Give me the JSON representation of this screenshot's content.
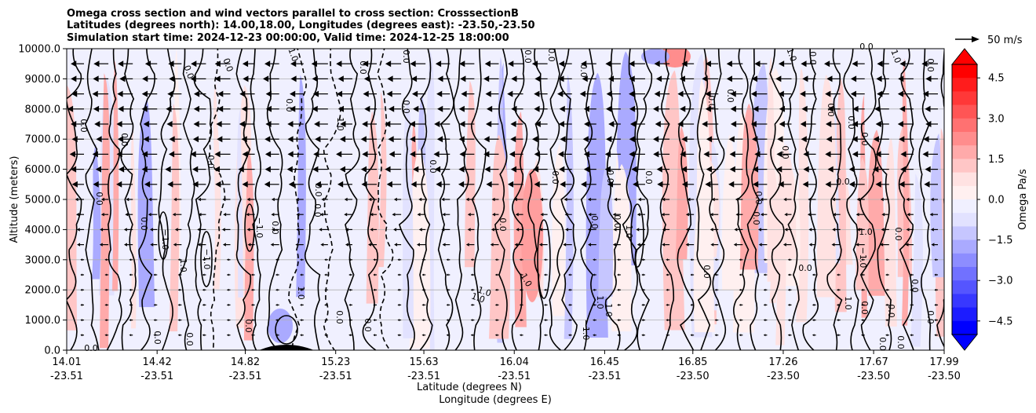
{
  "chart_data": {
    "type": "contour",
    "title_lines": [
      "Omega cross section and wind vectors parallel to cross section: CrosssectionB",
      "Latitudes (degrees north): 14.00,18.00, Longitudes (degrees east): -23.50,-23.50",
      "Simulation start time: 2024-12-23 00:00:00, Valid time: 2024-12-25 18:00:00"
    ],
    "xlabel_lat": "Latitude (degrees N)",
    "xlabel_lon": "Longitude (degrees E)",
    "ylabel": "Altitude (meters)",
    "ylim": [
      0,
      10000
    ],
    "yticks": [
      "0.0",
      "1000.0",
      "2000.0",
      "3000.0",
      "4000.0",
      "5000.0",
      "6000.0",
      "7000.0",
      "8000.0",
      "9000.0",
      "10000.0"
    ],
    "xticks": [
      {
        "lat": "14.01",
        "lon": "-23.51"
      },
      {
        "lat": "14.42",
        "lon": "-23.51"
      },
      {
        "lat": "14.82",
        "lon": "-23.51"
      },
      {
        "lat": "15.23",
        "lon": "-23.51"
      },
      {
        "lat": "15.63",
        "lon": "-23.51"
      },
      {
        "lat": "16.04",
        "lon": "-23.51"
      },
      {
        "lat": "16.45",
        "lon": "-23.51"
      },
      {
        "lat": "16.85",
        "lon": "-23.50"
      },
      {
        "lat": "17.26",
        "lon": "-23.50"
      },
      {
        "lat": "17.67",
        "lon": "-23.50"
      },
      {
        "lat": "17.99",
        "lon": "-23.50"
      }
    ],
    "grid": "horizontal",
    "colorbar": {
      "label": "Omega Pa/s",
      "ticks": [
        "4.5",
        "3.0",
        "1.5",
        "0.0",
        "−1.5",
        "−3.0",
        "−4.5"
      ],
      "range": [
        -5,
        5
      ],
      "extend": "both",
      "colors_high_to_low": [
        "#ff0000",
        "#ff1c1c",
        "#ff3838",
        "#ff5555",
        "#ff7171",
        "#ff8d8d",
        "#ffaaaa",
        "#ffc6c6",
        "#ffe2e2",
        "#fff0f0",
        "#f0f0ff",
        "#e2e2ff",
        "#c6c6ff",
        "#aaaaff",
        "#8d8dff",
        "#7171ff",
        "#5555ff",
        "#3838ff",
        "#1c1cff",
        "#0000ff"
      ]
    },
    "quiver_key": {
      "label": "50 m/s",
      "value": 50
    },
    "contour_labels": [
      "0.0",
      "1.0",
      "−1.0"
    ],
    "wind_direction": "southward",
    "wind_rows_m": [
      9500,
      9000,
      8500,
      8000,
      7500,
      7000,
      6500,
      6000,
      5500,
      5000,
      4500,
      4000,
      3500,
      3000,
      2500,
      2000,
      1500,
      1000,
      500
    ]
  }
}
